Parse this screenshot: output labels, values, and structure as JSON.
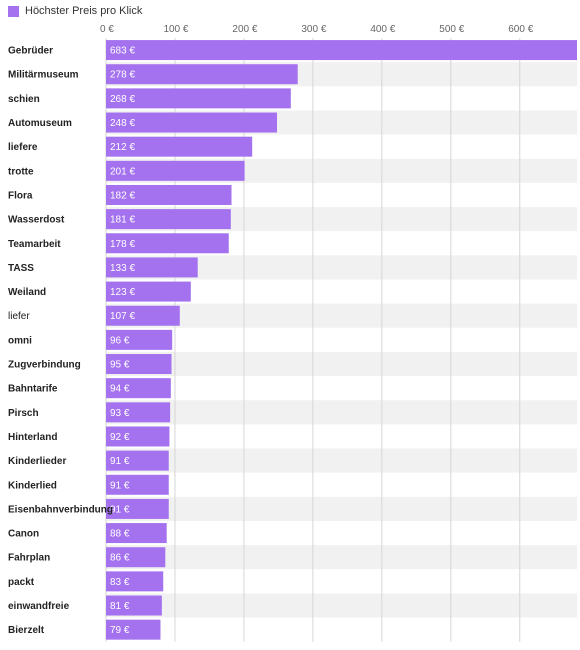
{
  "legend": {
    "label": "Höchster Preis pro Klick"
  },
  "colors": {
    "bar": "#a472ee",
    "band_alt": "#f1f1f1",
    "band": "#ffffff",
    "grid": "#d6d6d6",
    "axis_text": "#666666",
    "category_text": "#222222",
    "value_text": "#ffffff"
  },
  "chart_data": {
    "type": "bar",
    "orientation": "horizontal",
    "series": [
      {
        "name": "Höchster Preis pro Klick"
      }
    ],
    "categories": [
      "Gebrüder",
      "Militärmuseum",
      "schien",
      "Automuseum",
      "liefere",
      "trotte",
      "Flora",
      "Wasserdost",
      "Teamarbeit",
      "TASS",
      "Weiland",
      "liefer",
      "omni",
      "Zugverbindung",
      "Bahntarife",
      "Pirsch",
      "Hinterland",
      "Kinderlieder",
      "Kinderlied",
      "Eisenbahnverbindung",
      "Canon",
      "Fahrplan",
      "packt",
      "einwandfreie",
      "Bierzelt"
    ],
    "values": [
      683,
      278,
      268,
      248,
      212,
      201,
      182,
      181,
      178,
      133,
      123,
      107,
      96,
      95,
      94,
      93,
      92,
      91,
      91,
      91,
      88,
      86,
      83,
      81,
      79
    ],
    "value_labels": [
      "683 €",
      "278 €",
      "268 €",
      "248 €",
      "212 €",
      "201 €",
      "182 €",
      "181 €",
      "178 €",
      "133 €",
      "123 €",
      "107 €",
      "96 €",
      "95 €",
      "94 €",
      "93 €",
      "92 €",
      "91 €",
      "91 €",
      "91 €",
      "88 €",
      "86 €",
      "83 €",
      "81 €",
      "79 €"
    ],
    "bold_categories": [
      "Gebrüder",
      "Militärmuseum",
      "schien",
      "Automuseum",
      "liefere",
      "trotte",
      "Flora",
      "Wasserdost",
      "Teamarbeit",
      "TASS",
      "Weiland",
      "omni",
      "Zugverbindung",
      "Bahntarife",
      "Pirsch",
      "Hinterland",
      "Kinderlieder",
      "Kinderlied",
      "Eisenbahnverbindung",
      "Canon",
      "Fahrplan",
      "packt",
      "einwandfreie",
      "Bierzelt"
    ],
    "x_ticks": [
      0,
      100,
      200,
      300,
      400,
      500,
      600
    ],
    "x_tick_labels": [
      "0 €",
      "100 €",
      "200 €",
      "300 €",
      "400 €",
      "500 €",
      "600 €"
    ],
    "xlim": [
      0,
      683
    ],
    "grid": true,
    "axis_position": "top",
    "legend_position": "top-left"
  }
}
